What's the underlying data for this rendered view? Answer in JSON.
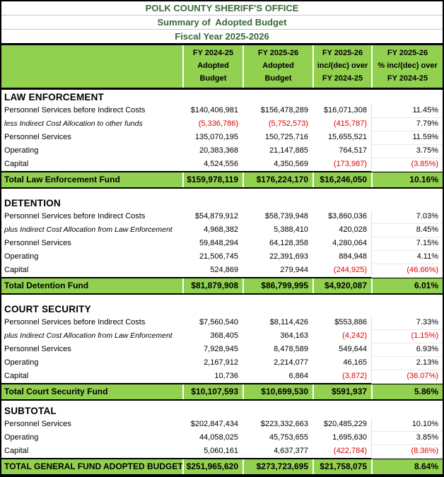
{
  "title_block": {
    "line1": "POLK COUNTY SHERIFF'S OFFICE",
    "line2": "Summary of  Adopted Budget",
    "line3": "Fiscal Year 2025-2026"
  },
  "column_headers": [
    "",
    "FY 2024-25\nAdopted\nBudget",
    "FY 2025-26\nAdopted\nBudget",
    "FY 2025-26\ninc/(dec) over\nFY 2024-25",
    "FY 2025-26\n% inc/(dec) over\nFY 2024-25"
  ],
  "sections": [
    {
      "heading": "LAW ENFORCEMENT",
      "rows": [
        {
          "label": "Personnel Services before Indirect Costs",
          "italic": false,
          "values": [
            "$140,406,981",
            "$156,478,289",
            "$16,071,308",
            "11.45%"
          ]
        },
        {
          "label": "less Indirect Cost Allocation to other funds",
          "italic": true,
          "values": [
            "(5,336,786)",
            "(5,752,573)",
            "(415,787)",
            "7.79%"
          ]
        },
        {
          "label": "Personnel Services",
          "italic": false,
          "values": [
            "135,070,195",
            "150,725,716",
            "15,655,521",
            "11.59%"
          ]
        },
        {
          "label": "Operating",
          "italic": false,
          "values": [
            "20,383,368",
            "21,147,885",
            "764,517",
            "3.75%"
          ]
        },
        {
          "label": "Capital",
          "italic": false,
          "values": [
            "4,524,556",
            "4,350,569",
            "(173,987)",
            "(3.85%)"
          ]
        }
      ],
      "total": {
        "label": "Total Law Enforcement Fund",
        "values": [
          "$159,978,119",
          "$176,224,170",
          "$16,246,050",
          "10.16%"
        ]
      }
    },
    {
      "heading": "DETENTION",
      "rows": [
        {
          "label": "Personnel Services before Indirect Costs",
          "italic": false,
          "values": [
            "$54,879,912",
            "$58,739,948",
            "$3,860,036",
            "7.03%"
          ]
        },
        {
          "label": "plus Indirect Cost Allocation from Law Enforcement",
          "italic": true,
          "values": [
            "4,968,382",
            "5,388,410",
            "420,028",
            "8.45%"
          ]
        },
        {
          "label": "Personnel Services",
          "italic": false,
          "values": [
            "59,848,294",
            "64,128,358",
            "4,280,064",
            "7.15%"
          ]
        },
        {
          "label": "Operating",
          "italic": false,
          "values": [
            "21,506,745",
            "22,391,693",
            "884,948",
            "4.11%"
          ]
        },
        {
          "label": "Capital",
          "italic": false,
          "values": [
            "524,869",
            "279,944",
            "(244,925)",
            "(46.66%)"
          ]
        }
      ],
      "total": {
        "label": "Total Detention Fund",
        "values": [
          "$81,879,908",
          "$86,799,995",
          "$4,920,087",
          "6.01%"
        ]
      }
    },
    {
      "heading": "COURT SECURITY",
      "rows": [
        {
          "label": "Personnel Services before Indirect Costs",
          "italic": false,
          "values": [
            "$7,560,540",
            "$8,114,426",
            "$553,886",
            "7.33%"
          ]
        },
        {
          "label": "plus Indirect Cost Allocation from Law Enforcement",
          "italic": true,
          "values": [
            "368,405",
            "364,163",
            "(4,242)",
            "(1.15%)"
          ]
        },
        {
          "label": "Personnel Services",
          "italic": false,
          "values": [
            "7,928,945",
            "8,478,589",
            "549,644",
            "6.93%"
          ]
        },
        {
          "label": "Operating",
          "italic": false,
          "values": [
            "2,167,912",
            "2,214,077",
            "46,165",
            "2.13%"
          ]
        },
        {
          "label": "Capital",
          "italic": false,
          "values": [
            "10,736",
            "6,864",
            "(3,872)",
            "(36.07%)"
          ]
        }
      ],
      "total": {
        "label": "Total Court Security Fund",
        "values": [
          "$10,107,593",
          "$10,699,530",
          "$591,937",
          "5.86%"
        ]
      }
    },
    {
      "heading": "SUBTOTAL",
      "rows": [
        {
          "label": "Personnel Services",
          "italic": false,
          "values": [
            "$202,847,434",
            "$223,332,663",
            "$20,485,229",
            "10.10%"
          ]
        },
        {
          "label": "Operating",
          "italic": false,
          "values": [
            "44,058,025",
            "45,753,655",
            "1,695,630",
            "3.85%"
          ]
        },
        {
          "label": "Capital",
          "italic": false,
          "values": [
            "5,060,161",
            "4,637,377",
            "(422,784)",
            "(8.36%)"
          ]
        }
      ],
      "total": {
        "label": "TOTAL GENERAL FUND ADOPTED BUDGET",
        "values": [
          "$251,965,620",
          "$273,723,695",
          "$21,758,075",
          "8.64%"
        ]
      }
    }
  ],
  "colors": {
    "band_green": "#92d050",
    "title_green": "#376937",
    "negative_red": "#e00000",
    "border_black": "#000000"
  }
}
